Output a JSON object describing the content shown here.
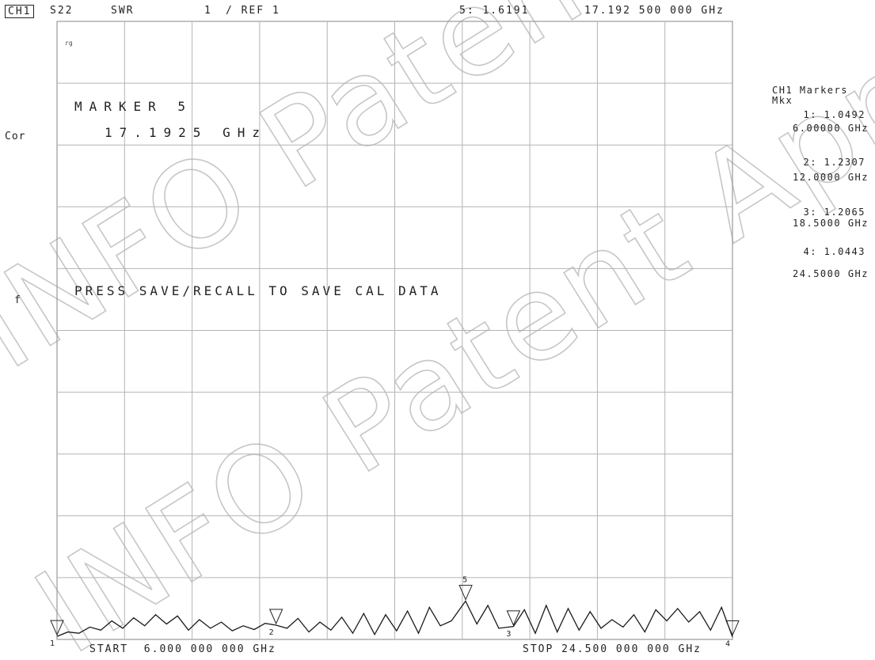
{
  "header": {
    "channel": "CH1",
    "parameter": "S22",
    "format": "SWR",
    "scale": "1",
    "ref": "/ REF 1",
    "active_marker_readout": "5: 1.6191",
    "active_marker_freq": "17.192 500 000 GHz"
  },
  "left_labels": {
    "cor": "Cor",
    "f": "f"
  },
  "overlay": {
    "marker_title": "MARKER 5",
    "marker_freq": "17.1925 GHz",
    "message": "PRESS SAVE/RECALL TO SAVE CAL DATA",
    "ref_glyph": "rg"
  },
  "footer": {
    "start": "START  6.000 000 000 GHz",
    "stop": "STOP 24.500 000 000 GHz"
  },
  "marker_panel": {
    "title": "CH1 Markers",
    "mode": "Mkx",
    "markers": [
      {
        "value": "1: 1.0492",
        "freq": "6.00000 GHz"
      },
      {
        "value": "2: 1.2307",
        "freq": "12.0000 GHz"
      },
      {
        "value": "3: 1.2065",
        "freq": "18.5000 GHz"
      },
      {
        "value": "4: 1.0443",
        "freq": "24.5000 GHz"
      }
    ]
  },
  "watermark": "INFO Patent Approval",
  "colors": {
    "trace": "#1a1a1a",
    "grid": "#b4b4b4",
    "watermark": "#c8c8c8"
  },
  "chart_data": {
    "type": "line",
    "x_unit": "GHz",
    "xlim": [
      6.0,
      24.5
    ],
    "ylim": [
      1.0,
      11.0
    ],
    "grid": true,
    "series": [
      {
        "x": [
          6.0,
          6.3,
          6.6,
          6.9,
          7.2,
          7.5,
          7.8,
          8.1,
          8.4,
          8.7,
          9.0,
          9.3,
          9.6,
          9.9,
          10.2,
          10.5,
          10.8,
          11.1,
          11.4,
          11.7,
          12.0,
          12.3,
          12.6,
          12.9,
          13.2,
          13.5,
          13.8,
          14.1,
          14.4,
          14.7,
          15.0,
          15.3,
          15.6,
          15.9,
          16.2,
          16.5,
          16.8,
          17.19,
          17.5,
          17.8,
          18.1,
          18.5,
          18.8,
          19.1,
          19.4,
          19.7,
          20.0,
          20.3,
          20.6,
          20.9,
          21.2,
          21.5,
          21.8,
          22.1,
          22.4,
          22.7,
          23.0,
          23.3,
          23.6,
          23.9,
          24.2,
          24.5
        ],
        "y": [
          1.05,
          1.12,
          1.1,
          1.2,
          1.15,
          1.3,
          1.18,
          1.35,
          1.22,
          1.4,
          1.25,
          1.38,
          1.15,
          1.32,
          1.18,
          1.28,
          1.14,
          1.22,
          1.16,
          1.26,
          1.23,
          1.18,
          1.34,
          1.12,
          1.28,
          1.15,
          1.36,
          1.1,
          1.42,
          1.08,
          1.4,
          1.14,
          1.46,
          1.1,
          1.52,
          1.22,
          1.3,
          1.62,
          1.25,
          1.55,
          1.18,
          1.21,
          1.48,
          1.1,
          1.55,
          1.12,
          1.5,
          1.15,
          1.45,
          1.18,
          1.32,
          1.2,
          1.4,
          1.12,
          1.48,
          1.3,
          1.5,
          1.28,
          1.45,
          1.15,
          1.52,
          1.04
        ]
      }
    ],
    "markers": [
      {
        "id": "1",
        "x": 6.0,
        "y": 1.0492
      },
      {
        "id": "2",
        "x": 12.0,
        "y": 1.2307
      },
      {
        "id": "3",
        "x": 18.5,
        "y": 1.2065
      },
      {
        "id": "4",
        "x": 24.5,
        "y": 1.0443
      },
      {
        "id": "5",
        "x": 17.1925,
        "y": 1.6191
      }
    ]
  }
}
